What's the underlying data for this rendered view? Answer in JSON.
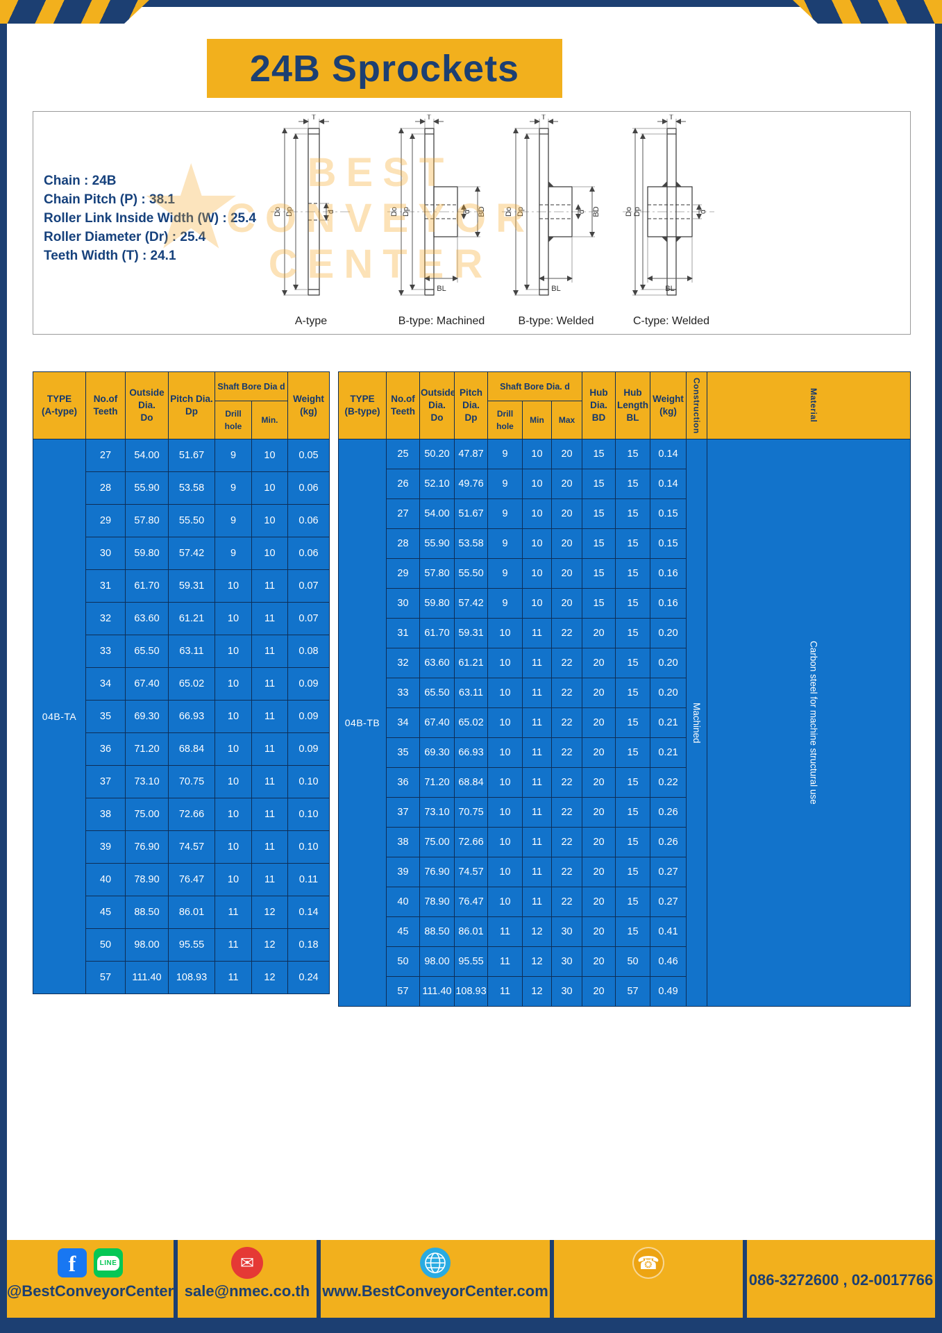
{
  "page": {
    "title": "24B Sprockets"
  },
  "specs": {
    "lines": [
      "Chain : 24B",
      "Chain Pitch (P) : 38.1",
      "Roller Link Inside Width (W) : 25.4",
      "Roller Diameter (Dr) : 25.4",
      "Teeth Width (T) : 24.1"
    ]
  },
  "watermark": {
    "star": "★",
    "lines": [
      "BEST",
      "CONVEYOR",
      "CENTER"
    ]
  },
  "drawings": {
    "captions": [
      "A-type",
      "B-type: Machined",
      "B-type: Welded",
      "C-type: Welded"
    ],
    "dims": {
      "T": "T",
      "Do": "Do",
      "Dp": "Dp",
      "d": "d",
      "BD": "BD",
      "BL": "BL"
    }
  },
  "table_a": {
    "type_label": "04B-TA",
    "headers": {
      "type": "TYPE\n(A-type)",
      "teeth": "No.of\nTeeth",
      "outside": "Outside\nDia.\nDo",
      "pitch": "Pitch Dia.\nDp",
      "shaft": "Shaft Bore Dia d",
      "drill": "Drill hole",
      "min": "Min.",
      "weight": "Weight\n(kg)"
    },
    "rows": [
      [
        "27",
        "54.00",
        "51.67",
        "9",
        "10",
        "0.05"
      ],
      [
        "28",
        "55.90",
        "53.58",
        "9",
        "10",
        "0.06"
      ],
      [
        "29",
        "57.80",
        "55.50",
        "9",
        "10",
        "0.06"
      ],
      [
        "30",
        "59.80",
        "57.42",
        "9",
        "10",
        "0.06"
      ],
      [
        "31",
        "61.70",
        "59.31",
        "10",
        "11",
        "0.07"
      ],
      [
        "32",
        "63.60",
        "61.21",
        "10",
        "11",
        "0.07"
      ],
      [
        "33",
        "65.50",
        "63.11",
        "10",
        "11",
        "0.08"
      ],
      [
        "34",
        "67.40",
        "65.02",
        "10",
        "11",
        "0.09"
      ],
      [
        "35",
        "69.30",
        "66.93",
        "10",
        "11",
        "0.09"
      ],
      [
        "36",
        "71.20",
        "68.84",
        "10",
        "11",
        "0.09"
      ],
      [
        "37",
        "73.10",
        "70.75",
        "10",
        "11",
        "0.10"
      ],
      [
        "38",
        "75.00",
        "72.66",
        "10",
        "11",
        "0.10"
      ],
      [
        "39",
        "76.90",
        "74.57",
        "10",
        "11",
        "0.10"
      ],
      [
        "40",
        "78.90",
        "76.47",
        "10",
        "11",
        "0.11"
      ],
      [
        "45",
        "88.50",
        "86.01",
        "11",
        "12",
        "0.14"
      ],
      [
        "50",
        "98.00",
        "95.55",
        "11",
        "12",
        "0.18"
      ],
      [
        "57",
        "111.40",
        "108.93",
        "11",
        "12",
        "0.24"
      ]
    ]
  },
  "table_b": {
    "type_label": "04B-TB",
    "construction_value": "Machined",
    "material_value": "Carbon steel for machine structural use",
    "headers": {
      "type": "TYPE\n(B-type)",
      "teeth": "No.of\nTeeth",
      "outside": "Outside\nDia.\nDo",
      "pitch": "Pitch\nDia.\nDp",
      "shaft": "Shaft Bore Dia.  d",
      "drill": "Drill hole",
      "min": "Min",
      "max": "Max",
      "hub_dia": "Hub\nDia.\nBD",
      "hub_len": "Hub\nLength\nBL",
      "weight": "Weight\n(kg)",
      "construction": "Construction",
      "material": "Material"
    },
    "rows": [
      [
        "25",
        "50.20",
        "47.87",
        "9",
        "10",
        "20",
        "15",
        "15",
        "0.14"
      ],
      [
        "26",
        "52.10",
        "49.76",
        "9",
        "10",
        "20",
        "15",
        "15",
        "0.14"
      ],
      [
        "27",
        "54.00",
        "51.67",
        "9",
        "10",
        "20",
        "15",
        "15",
        "0.15"
      ],
      [
        "28",
        "55.90",
        "53.58",
        "9",
        "10",
        "20",
        "15",
        "15",
        "0.15"
      ],
      [
        "29",
        "57.80",
        "55.50",
        "9",
        "10",
        "20",
        "15",
        "15",
        "0.16"
      ],
      [
        "30",
        "59.80",
        "57.42",
        "9",
        "10",
        "20",
        "15",
        "15",
        "0.16"
      ],
      [
        "31",
        "61.70",
        "59.31",
        "10",
        "11",
        "22",
        "20",
        "15",
        "0.20"
      ],
      [
        "32",
        "63.60",
        "61.21",
        "10",
        "11",
        "22",
        "20",
        "15",
        "0.20"
      ],
      [
        "33",
        "65.50",
        "63.11",
        "10",
        "11",
        "22",
        "20",
        "15",
        "0.20"
      ],
      [
        "34",
        "67.40",
        "65.02",
        "10",
        "11",
        "22",
        "20",
        "15",
        "0.21"
      ],
      [
        "35",
        "69.30",
        "66.93",
        "10",
        "11",
        "22",
        "20",
        "15",
        "0.21"
      ],
      [
        "36",
        "71.20",
        "68.84",
        "10",
        "11",
        "22",
        "20",
        "15",
        "0.22"
      ],
      [
        "37",
        "73.10",
        "70.75",
        "10",
        "11",
        "22",
        "20",
        "15",
        "0.26"
      ],
      [
        "38",
        "75.00",
        "72.66",
        "10",
        "11",
        "22",
        "20",
        "15",
        "0.26"
      ],
      [
        "39",
        "76.90",
        "74.57",
        "10",
        "11",
        "22",
        "20",
        "15",
        "0.27"
      ],
      [
        "40",
        "78.90",
        "76.47",
        "10",
        "11",
        "22",
        "20",
        "15",
        "0.27"
      ],
      [
        "45",
        "88.50",
        "86.01",
        "11",
        "12",
        "30",
        "20",
        "15",
        "0.41"
      ],
      [
        "50",
        "98.00",
        "95.55",
        "11",
        "12",
        "30",
        "20",
        "50",
        "0.46"
      ],
      [
        "57",
        "111.40",
        "108.93",
        "11",
        "12",
        "30",
        "20",
        "57",
        "0.49"
      ]
    ]
  },
  "footer": {
    "facebook_label": "f",
    "line_label": "LINE",
    "handle": "@BestConveyorCenter",
    "email": "sale@nmec.co.th",
    "website": "www.BestConveyorCenter.com",
    "phones": "086-3272600 , 02-0017766",
    "mail_glyph": "✉",
    "phone_glyph": "☎"
  },
  "colors": {
    "accent_yellow": "#f2b01d",
    "navy": "#1c3f72",
    "table_blue": "#1273cb"
  }
}
